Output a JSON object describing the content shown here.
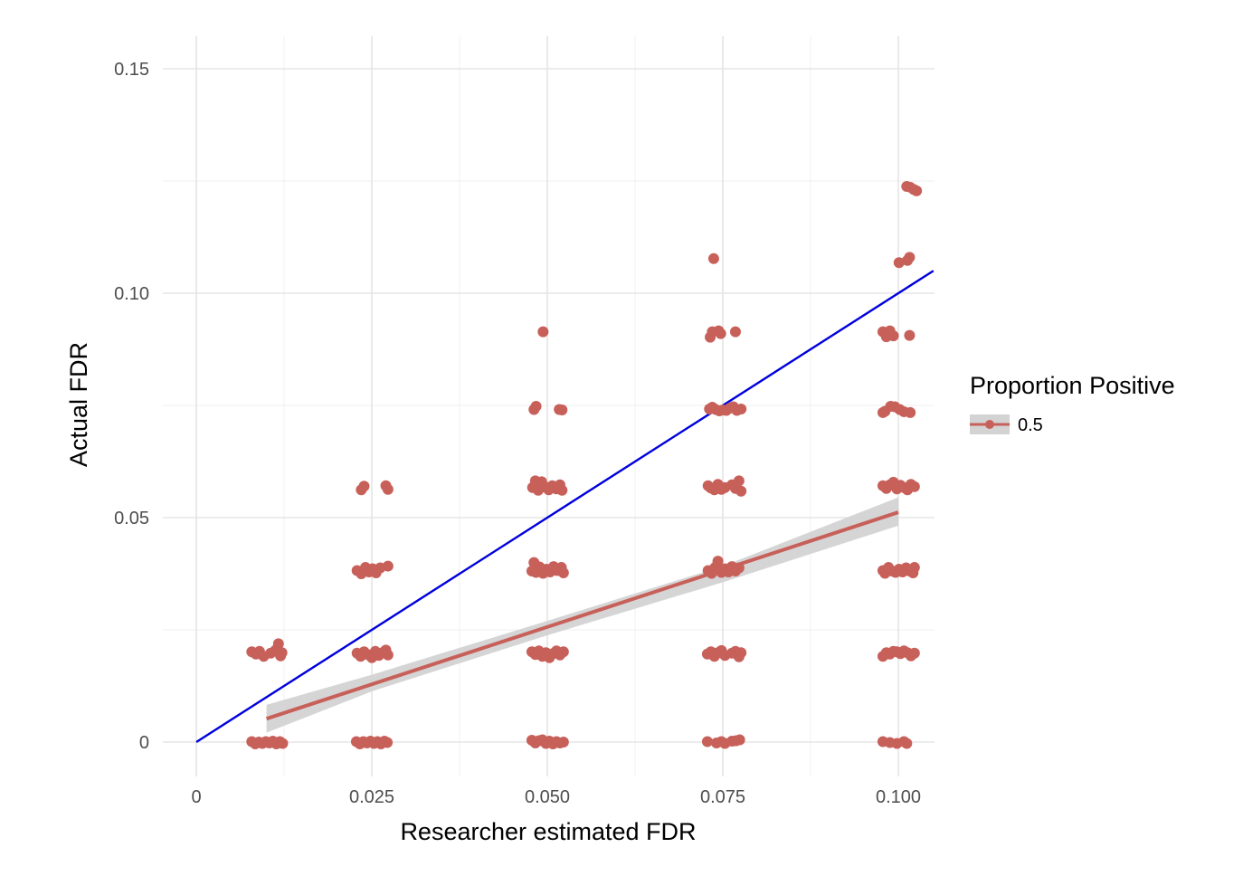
{
  "chart_data": {
    "type": "scatter",
    "xlabel": "Researcher estimated FDR",
    "ylabel": "Actual FDR",
    "xlim": [
      -0.009,
      0.105
    ],
    "ylim": [
      -0.008,
      0.157
    ],
    "x_ticks": [
      0,
      0.025,
      0.05,
      0.075,
      0.1
    ],
    "x_tick_labels": [
      "0",
      "0.025",
      "0.050",
      "0.075",
      "0.100"
    ],
    "y_ticks": [
      0,
      0.05,
      0.1,
      0.15
    ],
    "y_tick_labels": [
      "0",
      "0.05",
      "0.10",
      "0.15"
    ],
    "grid": true,
    "legend": {
      "title": "Proportion Positive",
      "placement": "right",
      "entries": [
        {
          "label": "0.5",
          "color": "#C8605A"
        }
      ]
    },
    "colors": {
      "points": "#C8605A",
      "fit_line": "#C8605A",
      "ci_band": "#d3d3d3",
      "identity_line": "#0000DD",
      "grid_major": "#e5e5e5",
      "grid_minor": "#f2f2f2"
    },
    "identity_line": {
      "x": [
        0,
        0.105
      ],
      "y": [
        0,
        0.105
      ]
    },
    "fit_line": {
      "x": [
        0.01,
        0.1
      ],
      "y": [
        0.0052,
        0.0512
      ]
    },
    "ci_band": {
      "x": [
        0.01,
        0.025,
        0.05,
        0.075,
        0.1
      ],
      "lower": [
        0.0021,
        0.0113,
        0.0238,
        0.0356,
        0.0482
      ],
      "upper": [
        0.0083,
        0.015,
        0.027,
        0.0392,
        0.0545
      ]
    },
    "series": [
      {
        "name": "0.5",
        "points": [
          [
            0.0079,
            0.0001
          ],
          [
            0.0084,
            -0.0004
          ],
          [
            0.0089,
            0.0
          ],
          [
            0.0094,
            -0.0003
          ],
          [
            0.0099,
            0.0001
          ],
          [
            0.0104,
            -0.0002
          ],
          [
            0.0109,
            0.0002
          ],
          [
            0.0114,
            -0.0004
          ],
          [
            0.0119,
            0.0001
          ],
          [
            0.0123,
            -0.0003
          ],
          [
            0.0079,
            0.0201
          ],
          [
            0.0085,
            0.0196
          ],
          [
            0.009,
            0.0202
          ],
          [
            0.0096,
            0.0191
          ],
          [
            0.0106,
            0.0198
          ],
          [
            0.0113,
            0.0205
          ],
          [
            0.0117,
            0.0219
          ],
          [
            0.012,
            0.0192
          ],
          [
            0.0122,
            0.0199
          ],
          [
            0.0228,
            0.0001
          ],
          [
            0.0233,
            -0.0004
          ],
          [
            0.0238,
            0.0001
          ],
          [
            0.0243,
            -0.0002
          ],
          [
            0.0248,
            0.0002
          ],
          [
            0.0253,
            -0.0003
          ],
          [
            0.0258,
            0.0001
          ],
          [
            0.0263,
            -0.0004
          ],
          [
            0.0268,
            0.0002
          ],
          [
            0.0272,
            -0.0001
          ],
          [
            0.0229,
            0.0198
          ],
          [
            0.0234,
            0.0191
          ],
          [
            0.0239,
            0.0201
          ],
          [
            0.0244,
            0.0195
          ],
          [
            0.025,
            0.0188
          ],
          [
            0.0255,
            0.0202
          ],
          [
            0.026,
            0.0193
          ],
          [
            0.0265,
            0.0199
          ],
          [
            0.027,
            0.0205
          ],
          [
            0.0273,
            0.0194
          ],
          [
            0.0229,
            0.0382
          ],
          [
            0.0235,
            0.0375
          ],
          [
            0.0241,
            0.0389
          ],
          [
            0.0246,
            0.0379
          ],
          [
            0.0251,
            0.0386
          ],
          [
            0.0256,
            0.0377
          ],
          [
            0.0262,
            0.0388
          ],
          [
            0.0273,
            0.0392
          ],
          [
            0.0235,
            0.0562
          ],
          [
            0.0239,
            0.057
          ],
          [
            0.027,
            0.0571
          ],
          [
            0.0273,
            0.0563
          ],
          [
            0.0478,
            0.0004
          ],
          [
            0.0483,
            -0.0002
          ],
          [
            0.0488,
            0.0003
          ],
          [
            0.0493,
            0.0005
          ],
          [
            0.0498,
            -0.0003
          ],
          [
            0.0503,
            0.0002
          ],
          [
            0.0508,
            -0.0004
          ],
          [
            0.0513,
            0.0001
          ],
          [
            0.0518,
            -0.0002
          ],
          [
            0.0523,
            0.0
          ],
          [
            0.0478,
            0.0201
          ],
          [
            0.0483,
            0.0195
          ],
          [
            0.0488,
            0.0203
          ],
          [
            0.0493,
            0.0191
          ],
          [
            0.0498,
            0.0199
          ],
          [
            0.0503,
            0.0188
          ],
          [
            0.0508,
            0.0197
          ],
          [
            0.0513,
            0.0203
          ],
          [
            0.0518,
            0.0194
          ],
          [
            0.0523,
            0.0201
          ],
          [
            0.0478,
            0.0381
          ],
          [
            0.0481,
            0.04
          ],
          [
            0.0484,
            0.0378
          ],
          [
            0.0489,
            0.039
          ],
          [
            0.0494,
            0.0376
          ],
          [
            0.0499,
            0.0385
          ],
          [
            0.0504,
            0.0379
          ],
          [
            0.0509,
            0.0391
          ],
          [
            0.0514,
            0.0382
          ],
          [
            0.052,
            0.0389
          ],
          [
            0.0523,
            0.0377
          ],
          [
            0.0479,
            0.0567
          ],
          [
            0.0483,
            0.0582
          ],
          [
            0.0487,
            0.0561
          ],
          [
            0.0492,
            0.058
          ],
          [
            0.0497,
            0.0568
          ],
          [
            0.0502,
            0.0562
          ],
          [
            0.0507,
            0.0571
          ],
          [
            0.0513,
            0.0564
          ],
          [
            0.0518,
            0.0573
          ],
          [
            0.0521,
            0.0561
          ],
          [
            0.0481,
            0.0741
          ],
          [
            0.0484,
            0.0748
          ],
          [
            0.0517,
            0.0741
          ],
          [
            0.0521,
            0.074
          ],
          [
            0.0494,
            0.0914
          ],
          [
            0.0728,
            0.0001
          ],
          [
            0.0741,
            -0.0002
          ],
          [
            0.0748,
            0.0001
          ],
          [
            0.0753,
            -0.0003
          ],
          [
            0.0763,
            0.0002
          ],
          [
            0.0769,
            0.0003
          ],
          [
            0.0774,
            0.0005
          ],
          [
            0.0728,
            0.0196
          ],
          [
            0.0733,
            0.0201
          ],
          [
            0.0738,
            0.0191
          ],
          [
            0.0743,
            0.0199
          ],
          [
            0.0748,
            0.0204
          ],
          [
            0.0753,
            0.0193
          ],
          [
            0.0763,
            0.0198
          ],
          [
            0.0768,
            0.0202
          ],
          [
            0.0773,
            0.019
          ],
          [
            0.0776,
            0.0199
          ],
          [
            0.0729,
            0.0382
          ],
          [
            0.0734,
            0.0376
          ],
          [
            0.0739,
            0.0389
          ],
          [
            0.0743,
            0.0403
          ],
          [
            0.0748,
            0.0378
          ],
          [
            0.0753,
            0.0386
          ],
          [
            0.0758,
            0.0379
          ],
          [
            0.0763,
            0.0391
          ],
          [
            0.0768,
            0.0381
          ],
          [
            0.0773,
            0.0388
          ],
          [
            0.0729,
            0.0571
          ],
          [
            0.0733,
            0.0566
          ],
          [
            0.0738,
            0.0562
          ],
          [
            0.0743,
            0.0574
          ],
          [
            0.0748,
            0.0563
          ],
          [
            0.0753,
            0.0567
          ],
          [
            0.0763,
            0.0573
          ],
          [
            0.0768,
            0.0565
          ],
          [
            0.0773,
            0.0582
          ],
          [
            0.0776,
            0.0559
          ],
          [
            0.0731,
            0.0742
          ],
          [
            0.0735,
            0.0746
          ],
          [
            0.074,
            0.0741
          ],
          [
            0.0745,
            0.0738
          ],
          [
            0.075,
            0.074
          ],
          [
            0.0755,
            0.0739
          ],
          [
            0.076,
            0.0744
          ],
          [
            0.0765,
            0.0747
          ],
          [
            0.077,
            0.0739
          ],
          [
            0.0776,
            0.0742
          ],
          [
            0.0732,
            0.0902
          ],
          [
            0.0735,
            0.0914
          ],
          [
            0.0744,
            0.0916
          ],
          [
            0.0747,
            0.091
          ],
          [
            0.0768,
            0.0914
          ],
          [
            0.0737,
            0.1077
          ],
          [
            0.0978,
            0.0001
          ],
          [
            0.0988,
            -0.0001
          ],
          [
            0.0998,
            -0.0003
          ],
          [
            0.1008,
            0.0001
          ],
          [
            0.1012,
            -0.0003
          ],
          [
            0.0978,
            0.0191
          ],
          [
            0.0983,
            0.0199
          ],
          [
            0.0988,
            0.0196
          ],
          [
            0.0993,
            0.0202
          ],
          [
            0.0998,
            0.0201
          ],
          [
            0.1003,
            0.0197
          ],
          [
            0.1008,
            0.0203
          ],
          [
            0.1013,
            0.0199
          ],
          [
            0.1018,
            0.0192
          ],
          [
            0.1023,
            0.0198
          ],
          [
            0.0978,
            0.0382
          ],
          [
            0.0981,
            0.0376
          ],
          [
            0.0986,
            0.0389
          ],
          [
            0.0991,
            0.0381
          ],
          [
            0.0996,
            0.0378
          ],
          [
            0.1001,
            0.0385
          ],
          [
            0.1006,
            0.0379
          ],
          [
            0.1011,
            0.0388
          ],
          [
            0.1016,
            0.0381
          ],
          [
            0.1021,
            0.0377
          ],
          [
            0.1023,
            0.0389
          ],
          [
            0.0978,
            0.0571
          ],
          [
            0.0983,
            0.0565
          ],
          [
            0.0988,
            0.0573
          ],
          [
            0.0993,
            0.0579
          ],
          [
            0.0998,
            0.0564
          ],
          [
            0.1003,
            0.0572
          ],
          [
            0.1008,
            0.0567
          ],
          [
            0.1013,
            0.0562
          ],
          [
            0.1018,
            0.0574
          ],
          [
            0.1023,
            0.0569
          ],
          [
            0.0978,
            0.0734
          ],
          [
            0.0981,
            0.0737
          ],
          [
            0.0989,
            0.0748
          ],
          [
            0.0995,
            0.0747
          ],
          [
            0.1002,
            0.0741
          ],
          [
            0.1008,
            0.0736
          ],
          [
            0.1017,
            0.0734
          ],
          [
            0.0978,
            0.0914
          ],
          [
            0.0983,
            0.0903
          ],
          [
            0.0988,
            0.0916
          ],
          [
            0.0993,
            0.0905
          ],
          [
            0.1016,
            0.0906
          ],
          [
            0.1001,
            0.1068
          ],
          [
            0.1013,
            0.1073
          ],
          [
            0.1016,
            0.108
          ],
          [
            0.1012,
            0.1238
          ],
          [
            0.1017,
            0.1236
          ],
          [
            0.1022,
            0.1231
          ],
          [
            0.1026,
            0.1228
          ]
        ]
      }
    ]
  }
}
